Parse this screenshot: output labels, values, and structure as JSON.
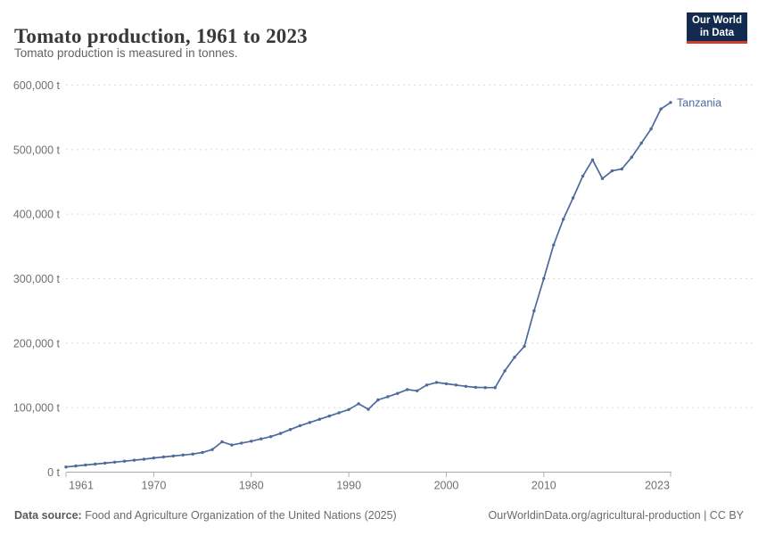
{
  "header": {
    "title": "Tomato production, 1961 to 2023",
    "subtitle": "Tomato production is measured in tonnes."
  },
  "logo": {
    "line1": "Our World",
    "line2": "in Data",
    "bg_color": "#122a4d",
    "accent_color": "#d13c32"
  },
  "chart_data": {
    "type": "line",
    "title": "Tomato production, 1961 to 2023",
    "subtitle": "Tomato production is measured in tonnes.",
    "unit": "t",
    "grid": "dashed-horizontal",
    "legend_position": "end-of-line-label",
    "xlim": [
      1961,
      2023
    ],
    "ylim": [
      0,
      600000
    ],
    "x_ticks": [
      1961,
      1970,
      1980,
      1990,
      2000,
      2010,
      2023
    ],
    "y_ticks": [
      {
        "value": 0,
        "label": "0 t"
      },
      {
        "value": 100000,
        "label": "100,000 t"
      },
      {
        "value": 200000,
        "label": "200,000 t"
      },
      {
        "value": 300000,
        "label": "300,000 t"
      },
      {
        "value": 400000,
        "label": "400,000 t"
      },
      {
        "value": 500000,
        "label": "500,000 t"
      },
      {
        "value": 600000,
        "label": "600,000 t"
      }
    ],
    "series": [
      {
        "name": "Tanzania",
        "color": "#4c6a9c",
        "years": [
          1961,
          1962,
          1963,
          1964,
          1965,
          1966,
          1967,
          1968,
          1969,
          1970,
          1971,
          1972,
          1973,
          1974,
          1975,
          1976,
          1977,
          1978,
          1979,
          1980,
          1981,
          1982,
          1983,
          1984,
          1985,
          1986,
          1987,
          1988,
          1989,
          1990,
          1991,
          1992,
          1993,
          1994,
          1995,
          1996,
          1997,
          1998,
          1999,
          2000,
          2001,
          2002,
          2003,
          2004,
          2005,
          2006,
          2007,
          2008,
          2009,
          2010,
          2011,
          2012,
          2013,
          2014,
          2015,
          2016,
          2017,
          2018,
          2019,
          2020,
          2021,
          2022,
          2023
        ],
        "values": [
          8000,
          9500,
          11000,
          12500,
          14000,
          15500,
          17000,
          18500,
          20000,
          22000,
          23500,
          25000,
          26500,
          28000,
          30500,
          35000,
          47000,
          42000,
          45000,
          48000,
          51500,
          55000,
          60000,
          66000,
          72000,
          77000,
          82000,
          87000,
          92000,
          97000,
          106000,
          97500,
          112000,
          117000,
          122000,
          128000,
          126000,
          135000,
          139000,
          137000,
          135000,
          133000,
          131500,
          131000,
          131000,
          157000,
          178000,
          195000,
          250000,
          300000,
          352000,
          392000,
          425000,
          459000,
          484000,
          455000,
          467000,
          470000,
          488000,
          510000,
          532000,
          563000,
          573000
        ]
      }
    ]
  },
  "axis_style": {
    "grid_color": "#dedede",
    "axis_color": "#a8a8a8",
    "tick_color": "#b3b3b3",
    "label_color": "#6e7075"
  },
  "footer": {
    "datasource_label": "Data source:",
    "datasource_text": " Food and Agriculture Organization of the United Nations (2025)",
    "link": "OurWorldinData.org/agricultural-production | CC BY"
  }
}
